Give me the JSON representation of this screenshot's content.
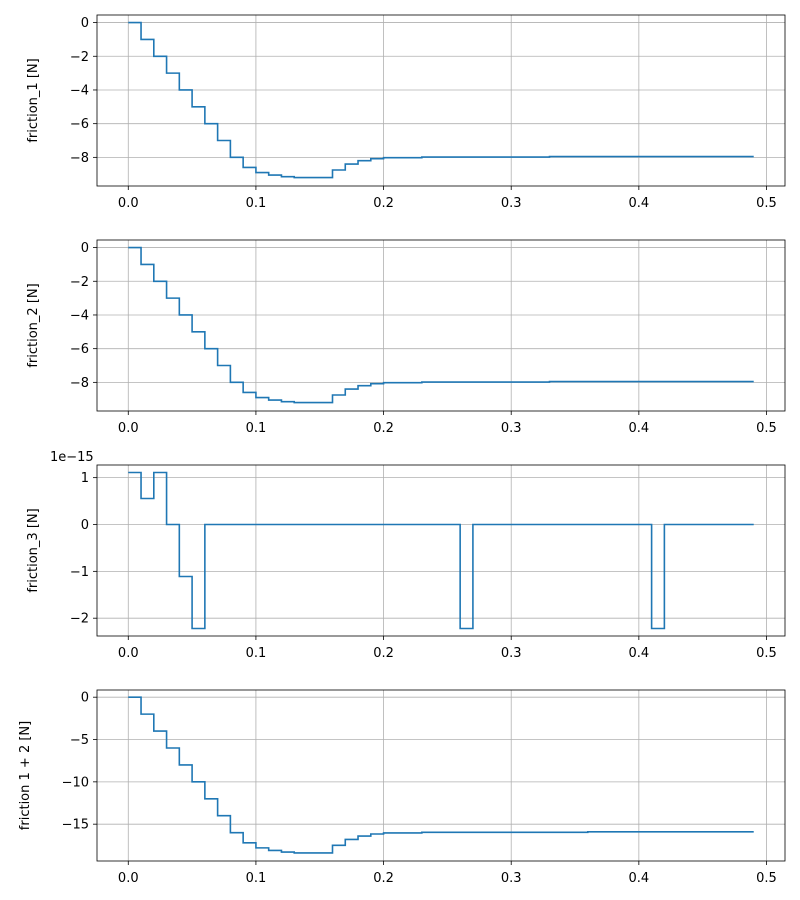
{
  "chart_data": [
    {
      "type": "line",
      "step": "post",
      "ylabel": "friction_1 [N]",
      "offset_text": "",
      "xlim": [
        -0.0245,
        0.5145
      ],
      "ylim": [
        -9.7,
        0.45
      ],
      "xticks": [
        0.0,
        0.1,
        0.2,
        0.3,
        0.4,
        0.5
      ],
      "xtick_labels": [
        "0.0",
        "0.1",
        "0.2",
        "0.3",
        "0.4",
        "0.5"
      ],
      "yticks": [
        0,
        -2,
        -4,
        -6,
        -8
      ],
      "ytick_labels": [
        "0",
        "−2",
        "−4",
        "−6",
        "−8"
      ],
      "grid": true,
      "series": [
        {
          "name": "friction_1",
          "color": "#1f77b4",
          "x": [
            0.0,
            0.01,
            0.02,
            0.03,
            0.04,
            0.05,
            0.06,
            0.07,
            0.08,
            0.09,
            0.1,
            0.11,
            0.12,
            0.13,
            0.14,
            0.15,
            0.16,
            0.17,
            0.18,
            0.19,
            0.2,
            0.23,
            0.33,
            0.49
          ],
          "y": [
            0.0,
            -1.0,
            -2.0,
            -3.0,
            -4.0,
            -5.0,
            -6.0,
            -7.0,
            -8.0,
            -8.6,
            -8.9,
            -9.05,
            -9.15,
            -9.2,
            -9.2,
            -9.2,
            -8.75,
            -8.4,
            -8.2,
            -8.08,
            -8.02,
            -7.98,
            -7.95,
            -7.95
          ]
        }
      ]
    },
    {
      "type": "line",
      "step": "post",
      "ylabel": "friction_2 [N]",
      "offset_text": "",
      "xlim": [
        -0.0245,
        0.5145
      ],
      "ylim": [
        -9.7,
        0.45
      ],
      "xticks": [
        0.0,
        0.1,
        0.2,
        0.3,
        0.4,
        0.5
      ],
      "xtick_labels": [
        "0.0",
        "0.1",
        "0.2",
        "0.3",
        "0.4",
        "0.5"
      ],
      "yticks": [
        0,
        -2,
        -4,
        -6,
        -8
      ],
      "ytick_labels": [
        "0",
        "−2",
        "−4",
        "−6",
        "−8"
      ],
      "grid": true,
      "series": [
        {
          "name": "friction_2",
          "color": "#1f77b4",
          "x": [
            0.0,
            0.01,
            0.02,
            0.03,
            0.04,
            0.05,
            0.06,
            0.07,
            0.08,
            0.09,
            0.1,
            0.11,
            0.12,
            0.13,
            0.14,
            0.15,
            0.16,
            0.17,
            0.18,
            0.19,
            0.2,
            0.23,
            0.33,
            0.49
          ],
          "y": [
            0.0,
            -1.0,
            -2.0,
            -3.0,
            -4.0,
            -5.0,
            -6.0,
            -7.0,
            -8.0,
            -8.6,
            -8.9,
            -9.05,
            -9.15,
            -9.2,
            -9.2,
            -9.2,
            -8.75,
            -8.4,
            -8.2,
            -8.08,
            -8.02,
            -7.98,
            -7.95,
            -7.95
          ]
        }
      ]
    },
    {
      "type": "line",
      "step": "post",
      "ylabel": "friction_3 [N]",
      "offset_text": "1e−15",
      "xlim": [
        -0.0245,
        0.5145
      ],
      "ylim": [
        -2.38,
        1.27
      ],
      "xticks": [
        0.0,
        0.1,
        0.2,
        0.3,
        0.4,
        0.5
      ],
      "xtick_labels": [
        "0.0",
        "0.1",
        "0.2",
        "0.3",
        "0.4",
        "0.5"
      ],
      "yticks": [
        1,
        0,
        -1,
        -2
      ],
      "ytick_labels": [
        "1",
        "0",
        "−1",
        "−2"
      ],
      "grid": true,
      "series": [
        {
          "name": "friction_3",
          "color": "#1f77b4",
          "x": [
            0.0,
            0.01,
            0.02,
            0.03,
            0.04,
            0.05,
            0.06,
            0.26,
            0.27,
            0.41,
            0.42,
            0.49
          ],
          "y": [
            1.11,
            0.555,
            1.11,
            0.0,
            -1.11,
            -2.22,
            0.0,
            -2.22,
            0.0,
            -2.22,
            0.0,
            0.0
          ]
        }
      ]
    },
    {
      "type": "line",
      "step": "post",
      "ylabel": "friction 1 + 2 [N]",
      "offset_text": "",
      "xlim": [
        -0.0245,
        0.5145
      ],
      "ylim": [
        -19.35,
        0.85
      ],
      "xticks": [
        0.0,
        0.1,
        0.2,
        0.3,
        0.4,
        0.5
      ],
      "xtick_labels": [
        "0.0",
        "0.1",
        "0.2",
        "0.3",
        "0.4",
        "0.5"
      ],
      "yticks": [
        0,
        -5,
        -10,
        -15
      ],
      "ytick_labels": [
        "0",
        "−5",
        "−10",
        "−15"
      ],
      "grid": true,
      "series": [
        {
          "name": "friction 1 + 2",
          "color": "#1f77b4",
          "x": [
            0.0,
            0.01,
            0.02,
            0.03,
            0.04,
            0.05,
            0.06,
            0.07,
            0.08,
            0.09,
            0.1,
            0.11,
            0.12,
            0.13,
            0.14,
            0.15,
            0.16,
            0.17,
            0.18,
            0.19,
            0.2,
            0.23,
            0.36,
            0.49
          ],
          "y": [
            0.0,
            -2.0,
            -4.0,
            -6.0,
            -8.0,
            -10.0,
            -12.0,
            -14.0,
            -16.0,
            -17.2,
            -17.8,
            -18.1,
            -18.3,
            -18.4,
            -18.4,
            -18.4,
            -17.5,
            -16.8,
            -16.4,
            -16.16,
            -16.04,
            -15.96,
            -15.9,
            -15.9
          ]
        }
      ]
    }
  ]
}
